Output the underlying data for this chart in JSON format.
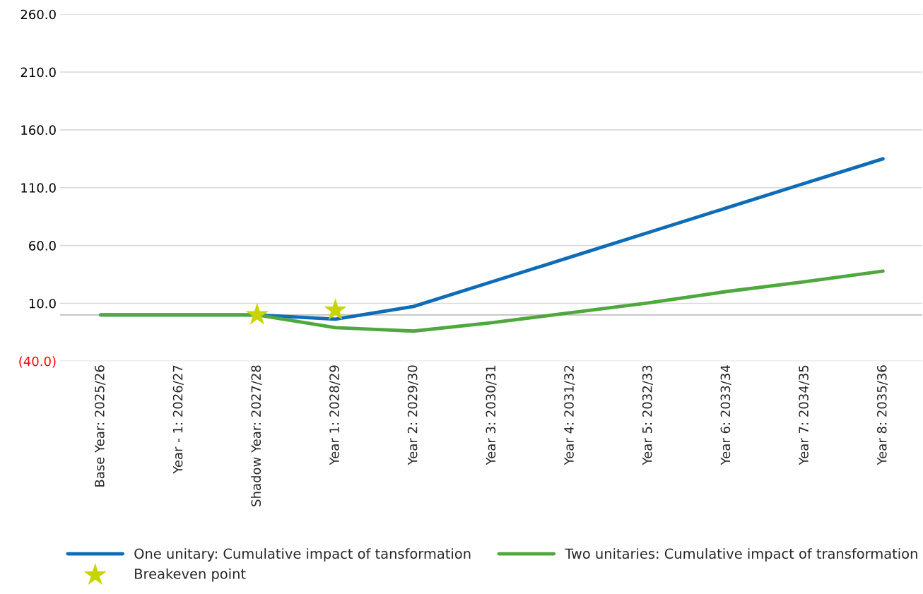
{
  "chart_data": {
    "type": "line",
    "categories": [
      "Base Year: 2025/26",
      "Year - 1: 2026/27",
      "Shadow Year: 2027/28",
      "Year 1: 2028/29",
      "Year 2: 2029/30",
      "Year 3: 2030/31",
      "Year 4: 2031/32",
      "Year 5: 2032/33",
      "Year 6: 2033/34",
      "Year 7: 2034/35",
      "Year 8: 2035/36"
    ],
    "series": [
      {
        "name": "One unitary: Cumulative impact of tansformation",
        "color": "#0f6cb6",
        "values": [
          0,
          0,
          0,
          -3.7,
          7.3,
          28.6,
          49.9,
          71.2,
          92.5,
          113.8,
          135
        ]
      },
      {
        "name": "Two unitaries: Cumulative impact of transformation",
        "color": "#4fa83d",
        "values": [
          0,
          0,
          0,
          -11,
          -14,
          -6.7,
          1.8,
          10.4,
          20.2,
          28.7,
          37.9
        ]
      },
      {
        "name": "Breakeven point",
        "type": "scatter",
        "marker": "star",
        "color": "#c8d400",
        "values": [
          null,
          null,
          0,
          4,
          null,
          null,
          null,
          null,
          null,
          null,
          null
        ]
      }
    ],
    "ylim": [
      -40,
      260
    ],
    "yticks": [
      {
        "value": -40,
        "label": "(40.0)"
      },
      {
        "value": 10,
        "label": "10.0"
      },
      {
        "value": 60,
        "label": "60.0"
      },
      {
        "value": 110,
        "label": "110.0"
      },
      {
        "value": 160,
        "label": "160.0"
      },
      {
        "value": 210,
        "label": "210.0"
      },
      {
        "value": 260,
        "label": "260.0"
      }
    ],
    "ref_lines": [
      {
        "axis": "y",
        "value": 0,
        "color": "#bfbfbf"
      }
    ],
    "grid": "y",
    "legend": "bottom",
    "marker": "none",
    "line_style": "solid"
  }
}
